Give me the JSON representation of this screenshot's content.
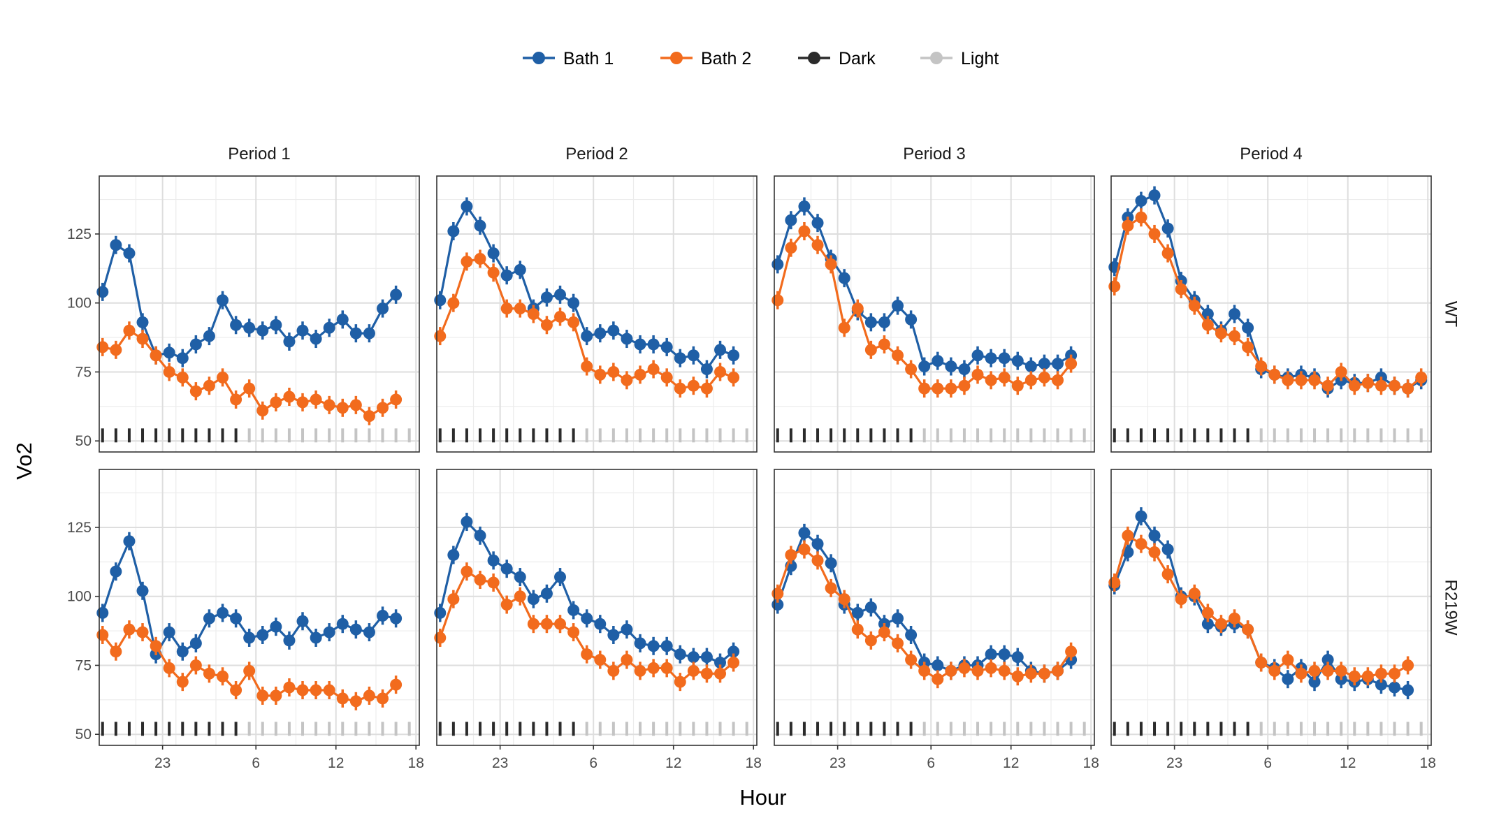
{
  "chart_data": {
    "type": "line",
    "xlabel": "Hour",
    "ylabel": "Vo2",
    "x_ticks": [
      23,
      6,
      12,
      18
    ],
    "y_ticks": [
      50,
      75,
      100,
      125
    ],
    "ylim": [
      46,
      146
    ],
    "facet_cols": [
      "Period 1",
      "Period 2",
      "Period 3",
      "Period 4"
    ],
    "facet_rows": [
      "WT",
      "R219W"
    ],
    "legend": {
      "position": "top",
      "items": [
        {
          "label": "Bath 1",
          "color": "#1f5fa6",
          "kind": "line-point"
        },
        {
          "label": "Bath 2",
          "color": "#f26b1d",
          "kind": "line-point"
        },
        {
          "label": "Dark",
          "color": "#2b2b2b",
          "kind": "line-point"
        },
        {
          "label": "Light",
          "color": "#c4c4c4",
          "kind": "line-point"
        }
      ]
    },
    "colors": {
      "bath1": "#1f5fa6",
      "bath2": "#f26b1d",
      "dark": "#2b2b2b",
      "light": "#c4c4c4"
    },
    "hours": [
      "18:30",
      "19:30",
      "20:30",
      "21:30",
      "22:30",
      "23:30",
      "00:30",
      "01:30",
      "02:30",
      "03:30",
      "04:30",
      "05:30",
      "06:30",
      "07:30",
      "08:30",
      "09:30",
      "10:30",
      "11:30",
      "12:30",
      "13:30",
      "14:30",
      "15:30",
      "16:30",
      "17:30"
    ],
    "light_dark_marks": {
      "dark_hours": 11,
      "light_hours": 13,
      "y_value": 52
    },
    "panels": [
      {
        "period": "Period 1",
        "genotype": "WT",
        "series": [
          {
            "name": "Bath 1",
            "values": [
              104,
              121,
              118,
              93,
              81,
              82,
              80,
              85,
              88,
              101,
              92,
              91,
              90,
              92,
              86,
              90,
              87,
              91,
              94,
              89,
              89,
              98,
              103,
              null
            ]
          },
          {
            "name": "Bath 2",
            "values": [
              84,
              83,
              90,
              87,
              81,
              75,
              73,
              68,
              70,
              73,
              65,
              69,
              61,
              64,
              66,
              64,
              65,
              63,
              62,
              63,
              59,
              62,
              65,
              null
            ]
          }
        ]
      },
      {
        "period": "Period 2",
        "genotype": "WT",
        "series": [
          {
            "name": "Bath 1",
            "values": [
              101,
              126,
              135,
              128,
              118,
              110,
              112,
              98,
              102,
              103,
              100,
              88,
              89,
              90,
              87,
              85,
              85,
              84,
              80,
              81,
              76,
              83,
              81,
              null
            ]
          },
          {
            "name": "Bath 2",
            "values": [
              88,
              100,
              115,
              116,
              111,
              98,
              98,
              96,
              92,
              95,
              93,
              77,
              74,
              75,
              72,
              74,
              76,
              73,
              69,
              70,
              69,
              75,
              73,
              null
            ]
          }
        ]
      },
      {
        "period": "Period 3",
        "genotype": "WT",
        "series": [
          {
            "name": "Bath 1",
            "values": [
              114,
              130,
              135,
              129,
              116,
              109,
              97,
              93,
              93,
              99,
              94,
              77,
              79,
              77,
              76,
              81,
              80,
              80,
              79,
              77,
              78,
              78,
              81,
              null
            ]
          },
          {
            "name": "Bath 2",
            "values": [
              101,
              120,
              126,
              121,
              114,
              91,
              98,
              83,
              85,
              81,
              76,
              69,
              69,
              69,
              70,
              74,
              72,
              73,
              70,
              72,
              73,
              72,
              78,
              null
            ]
          }
        ]
      },
      {
        "period": "Period 4",
        "genotype": "WT",
        "series": [
          {
            "name": "Bath 1",
            "values": [
              113,
              131,
              137,
              139,
              127,
              108,
              101,
              96,
              90,
              96,
              91,
              76,
              74,
              73,
              74,
              73,
              69,
              72,
              71,
              71,
              73,
              70,
              69,
              72
            ]
          },
          {
            "name": "Bath 2",
            "values": [
              106,
              128,
              131,
              125,
              118,
              105,
              99,
              92,
              89,
              88,
              84,
              77,
              74,
              72,
              72,
              72,
              70,
              75,
              70,
              71,
              70,
              70,
              69,
              73
            ]
          }
        ]
      },
      {
        "period": "Period 1",
        "genotype": "R219W",
        "series": [
          {
            "name": "Bath 1",
            "values": [
              94,
              109,
              120,
              102,
              79,
              87,
              80,
              83,
              92,
              94,
              92,
              85,
              86,
              89,
              84,
              91,
              85,
              87,
              90,
              88,
              87,
              93,
              92,
              null
            ]
          },
          {
            "name": "Bath 2",
            "values": [
              86,
              80,
              88,
              87,
              82,
              74,
              69,
              75,
              72,
              71,
              66,
              73,
              64,
              64,
              67,
              66,
              66,
              66,
              63,
              62,
              64,
              63,
              68,
              null
            ]
          }
        ]
      },
      {
        "period": "Period 2",
        "genotype": "R219W",
        "series": [
          {
            "name": "Bath 1",
            "values": [
              94,
              115,
              127,
              122,
              113,
              110,
              107,
              99,
              101,
              107,
              95,
              92,
              90,
              86,
              88,
              83,
              82,
              82,
              79,
              78,
              78,
              76,
              80,
              null
            ]
          },
          {
            "name": "Bath 2",
            "values": [
              85,
              99,
              109,
              106,
              105,
              97,
              100,
              90,
              90,
              90,
              87,
              79,
              77,
              73,
              77,
              73,
              74,
              74,
              69,
              73,
              72,
              72,
              76,
              null
            ]
          }
        ]
      },
      {
        "period": "Period 3",
        "genotype": "R219W",
        "series": [
          {
            "name": "Bath 1",
            "values": [
              97,
              111,
              123,
              119,
              112,
              97,
              94,
              96,
              90,
              92,
              86,
              76,
              75,
              73,
              75,
              75,
              79,
              79,
              78,
              73,
              72,
              73,
              77,
              null
            ]
          },
          {
            "name": "Bath 2",
            "values": [
              101,
              115,
              117,
              113,
              103,
              99,
              88,
              84,
              87,
              83,
              77,
              73,
              70,
              73,
              74,
              73,
              74,
              73,
              71,
              72,
              72,
              73,
              80,
              null
            ]
          }
        ]
      },
      {
        "period": "Period 4",
        "genotype": "R219W",
        "series": [
          {
            "name": "Bath 1",
            "values": [
              104,
              116,
              129,
              122,
              117,
              100,
              100,
              90,
              89,
              90,
              88,
              76,
              74,
              70,
              74,
              69,
              77,
              70,
              69,
              70,
              68,
              67,
              66,
              null
            ]
          },
          {
            "name": "Bath 2",
            "values": [
              105,
              122,
              119,
              116,
              108,
              99,
              101,
              94,
              90,
              92,
              88,
              76,
              73,
              77,
              72,
              73,
              73,
              73,
              71,
              71,
              72,
              72,
              75,
              null
            ]
          }
        ]
      }
    ]
  }
}
